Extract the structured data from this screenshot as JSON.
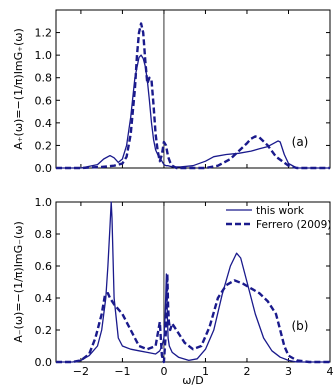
{
  "chart_data": [
    {
      "type": "line",
      "panel_label": "(a)",
      "xlim": [
        -2.6,
        4
      ],
      "ylim": [
        0,
        1.4
      ],
      "x_ticks": [
        -2,
        -1,
        0,
        1,
        2,
        3,
        4
      ],
      "y_ticks": [
        0.0,
        0.2,
        0.4,
        0.6,
        0.8,
        1.0,
        1.2
      ],
      "y_tick_labels": [
        "0.0",
        "0.2",
        "0.4",
        "0.6",
        "0.8",
        "1.0",
        "1.2"
      ],
      "ylabel": "A₊(ω)=−(1/π)ImG₊(ω)",
      "xlabel": "",
      "zero_line": true,
      "series": [
        {
          "name": "this work",
          "style": "solid",
          "color": "#1a1a8c",
          "x": [
            -2.6,
            -2.0,
            -1.6,
            -1.45,
            -1.3,
            -1.2,
            -1.1,
            -1.0,
            -0.9,
            -0.8,
            -0.7,
            -0.6,
            -0.55,
            -0.5,
            -0.45,
            -0.4,
            -0.35,
            -0.3,
            -0.25,
            -0.2,
            -0.15,
            -0.1,
            -0.05,
            0.0,
            0.05,
            0.1,
            0.2,
            0.4,
            0.7,
            1.0,
            1.2,
            1.5,
            1.8,
            2.1,
            2.3,
            2.5,
            2.65,
            2.75,
            2.8,
            2.9,
            3.0,
            3.2,
            3.5,
            4.0
          ],
          "y": [
            0.0,
            0.0,
            0.03,
            0.08,
            0.11,
            0.09,
            0.05,
            0.08,
            0.2,
            0.45,
            0.8,
            0.98,
            1.0,
            0.97,
            0.9,
            0.78,
            0.6,
            0.4,
            0.25,
            0.16,
            0.12,
            0.09,
            0.06,
            0.03,
            0.02,
            0.02,
            0.01,
            0.01,
            0.02,
            0.06,
            0.1,
            0.12,
            0.13,
            0.15,
            0.17,
            0.19,
            0.22,
            0.24,
            0.23,
            0.12,
            0.04,
            0.0,
            0.0,
            0.0
          ]
        },
        {
          "name": "Ferrero (2009)",
          "style": "dashed",
          "color": "#1a1a8c",
          "x": [
            -2.6,
            -2.0,
            -1.5,
            -1.2,
            -1.0,
            -0.9,
            -0.8,
            -0.7,
            -0.65,
            -0.6,
            -0.55,
            -0.5,
            -0.45,
            -0.4,
            -0.35,
            -0.3,
            -0.25,
            -0.2,
            -0.15,
            -0.1,
            -0.05,
            0.0,
            0.05,
            0.1,
            0.15,
            0.2,
            0.3,
            0.6,
            1.0,
            1.3,
            1.6,
            1.8,
            2.0,
            2.1,
            2.2,
            2.3,
            2.5,
            2.7,
            3.0,
            3.2,
            3.5,
            4.0
          ],
          "y": [
            0.0,
            0.0,
            0.01,
            0.02,
            0.04,
            0.1,
            0.3,
            0.7,
            1.0,
            1.2,
            1.28,
            1.2,
            0.95,
            0.75,
            0.8,
            0.78,
            0.55,
            0.3,
            0.15,
            0.06,
            0.12,
            0.23,
            0.2,
            0.1,
            0.05,
            0.02,
            0.0,
            0.0,
            0.0,
            0.02,
            0.08,
            0.15,
            0.22,
            0.26,
            0.28,
            0.27,
            0.2,
            0.1,
            0.02,
            0.0,
            0.0,
            0.0
          ]
        }
      ]
    },
    {
      "type": "line",
      "panel_label": "(b)",
      "xlim": [
        -2.6,
        4
      ],
      "ylim": [
        0,
        1.0
      ],
      "x_ticks": [
        -2,
        -1,
        0,
        1,
        2,
        3,
        4
      ],
      "x_tick_labels": [
        "−2",
        "−1",
        "0",
        "1",
        "2",
        "3",
        "4"
      ],
      "y_ticks": [
        0.0,
        0.2,
        0.4,
        0.6,
        0.8,
        1.0
      ],
      "y_tick_labels": [
        "0.0",
        "0.2",
        "0.4",
        "0.6",
        "0.8",
        "1.0"
      ],
      "ylabel": "A₋(ω)=−(1/π)ImG₋(ω)",
      "xlabel": "ω/D",
      "zero_line": true,
      "legend": {
        "placement": "top-right",
        "entries": [
          "this work",
          "Ferrero (2009)"
        ]
      },
      "series": [
        {
          "name": "this work",
          "style": "solid",
          "color": "#1a1a8c",
          "x": [
            -2.6,
            -2.2,
            -2.0,
            -1.8,
            -1.6,
            -1.5,
            -1.4,
            -1.35,
            -1.3,
            -1.27,
            -1.25,
            -1.2,
            -1.1,
            -1.0,
            -0.8,
            -0.6,
            -0.4,
            -0.2,
            -0.1,
            -0.05,
            0.0,
            0.03,
            0.06,
            0.08,
            0.1,
            0.13,
            0.2,
            0.35,
            0.6,
            0.8,
            1.0,
            1.2,
            1.4,
            1.6,
            1.75,
            1.85,
            2.0,
            2.2,
            2.4,
            2.6,
            2.8,
            3.0,
            3.2,
            3.5,
            4.0
          ],
          "y": [
            0.0,
            0.0,
            0.01,
            0.04,
            0.1,
            0.2,
            0.4,
            0.6,
            0.85,
            1.0,
            0.9,
            0.4,
            0.15,
            0.1,
            0.08,
            0.07,
            0.06,
            0.05,
            0.07,
            0.1,
            0.15,
            0.3,
            0.55,
            0.3,
            0.15,
            0.1,
            0.06,
            0.03,
            0.01,
            0.02,
            0.08,
            0.2,
            0.42,
            0.6,
            0.68,
            0.65,
            0.5,
            0.3,
            0.15,
            0.07,
            0.03,
            0.01,
            0.0,
            0.0,
            0.0
          ]
        },
        {
          "name": "Ferrero (2009)",
          "style": "dashed",
          "color": "#1a1a8c",
          "x": [
            -2.6,
            -2.2,
            -2.0,
            -1.8,
            -1.65,
            -1.5,
            -1.42,
            -1.35,
            -1.3,
            -1.2,
            -1.0,
            -0.8,
            -0.6,
            -0.4,
            -0.2,
            -0.1,
            -0.05,
            0.0,
            0.05,
            0.08,
            0.1,
            0.12,
            0.15,
            0.2,
            0.3,
            0.5,
            0.7,
            0.9,
            1.1,
            1.3,
            1.5,
            1.7,
            1.9,
            2.1,
            2.3,
            2.5,
            2.7,
            2.8,
            2.9,
            3.0,
            3.2,
            3.5,
            4.0
          ],
          "y": [
            0.0,
            0.0,
            0.01,
            0.05,
            0.15,
            0.3,
            0.42,
            0.43,
            0.4,
            0.36,
            0.3,
            0.2,
            0.1,
            0.08,
            0.1,
            0.25,
            0.04,
            0.0,
            0.2,
            0.55,
            0.35,
            0.25,
            0.2,
            0.24,
            0.2,
            0.12,
            0.08,
            0.1,
            0.22,
            0.4,
            0.48,
            0.51,
            0.49,
            0.46,
            0.43,
            0.38,
            0.3,
            0.2,
            0.1,
            0.04,
            0.01,
            0.0,
            0.0
          ]
        }
      ]
    }
  ]
}
